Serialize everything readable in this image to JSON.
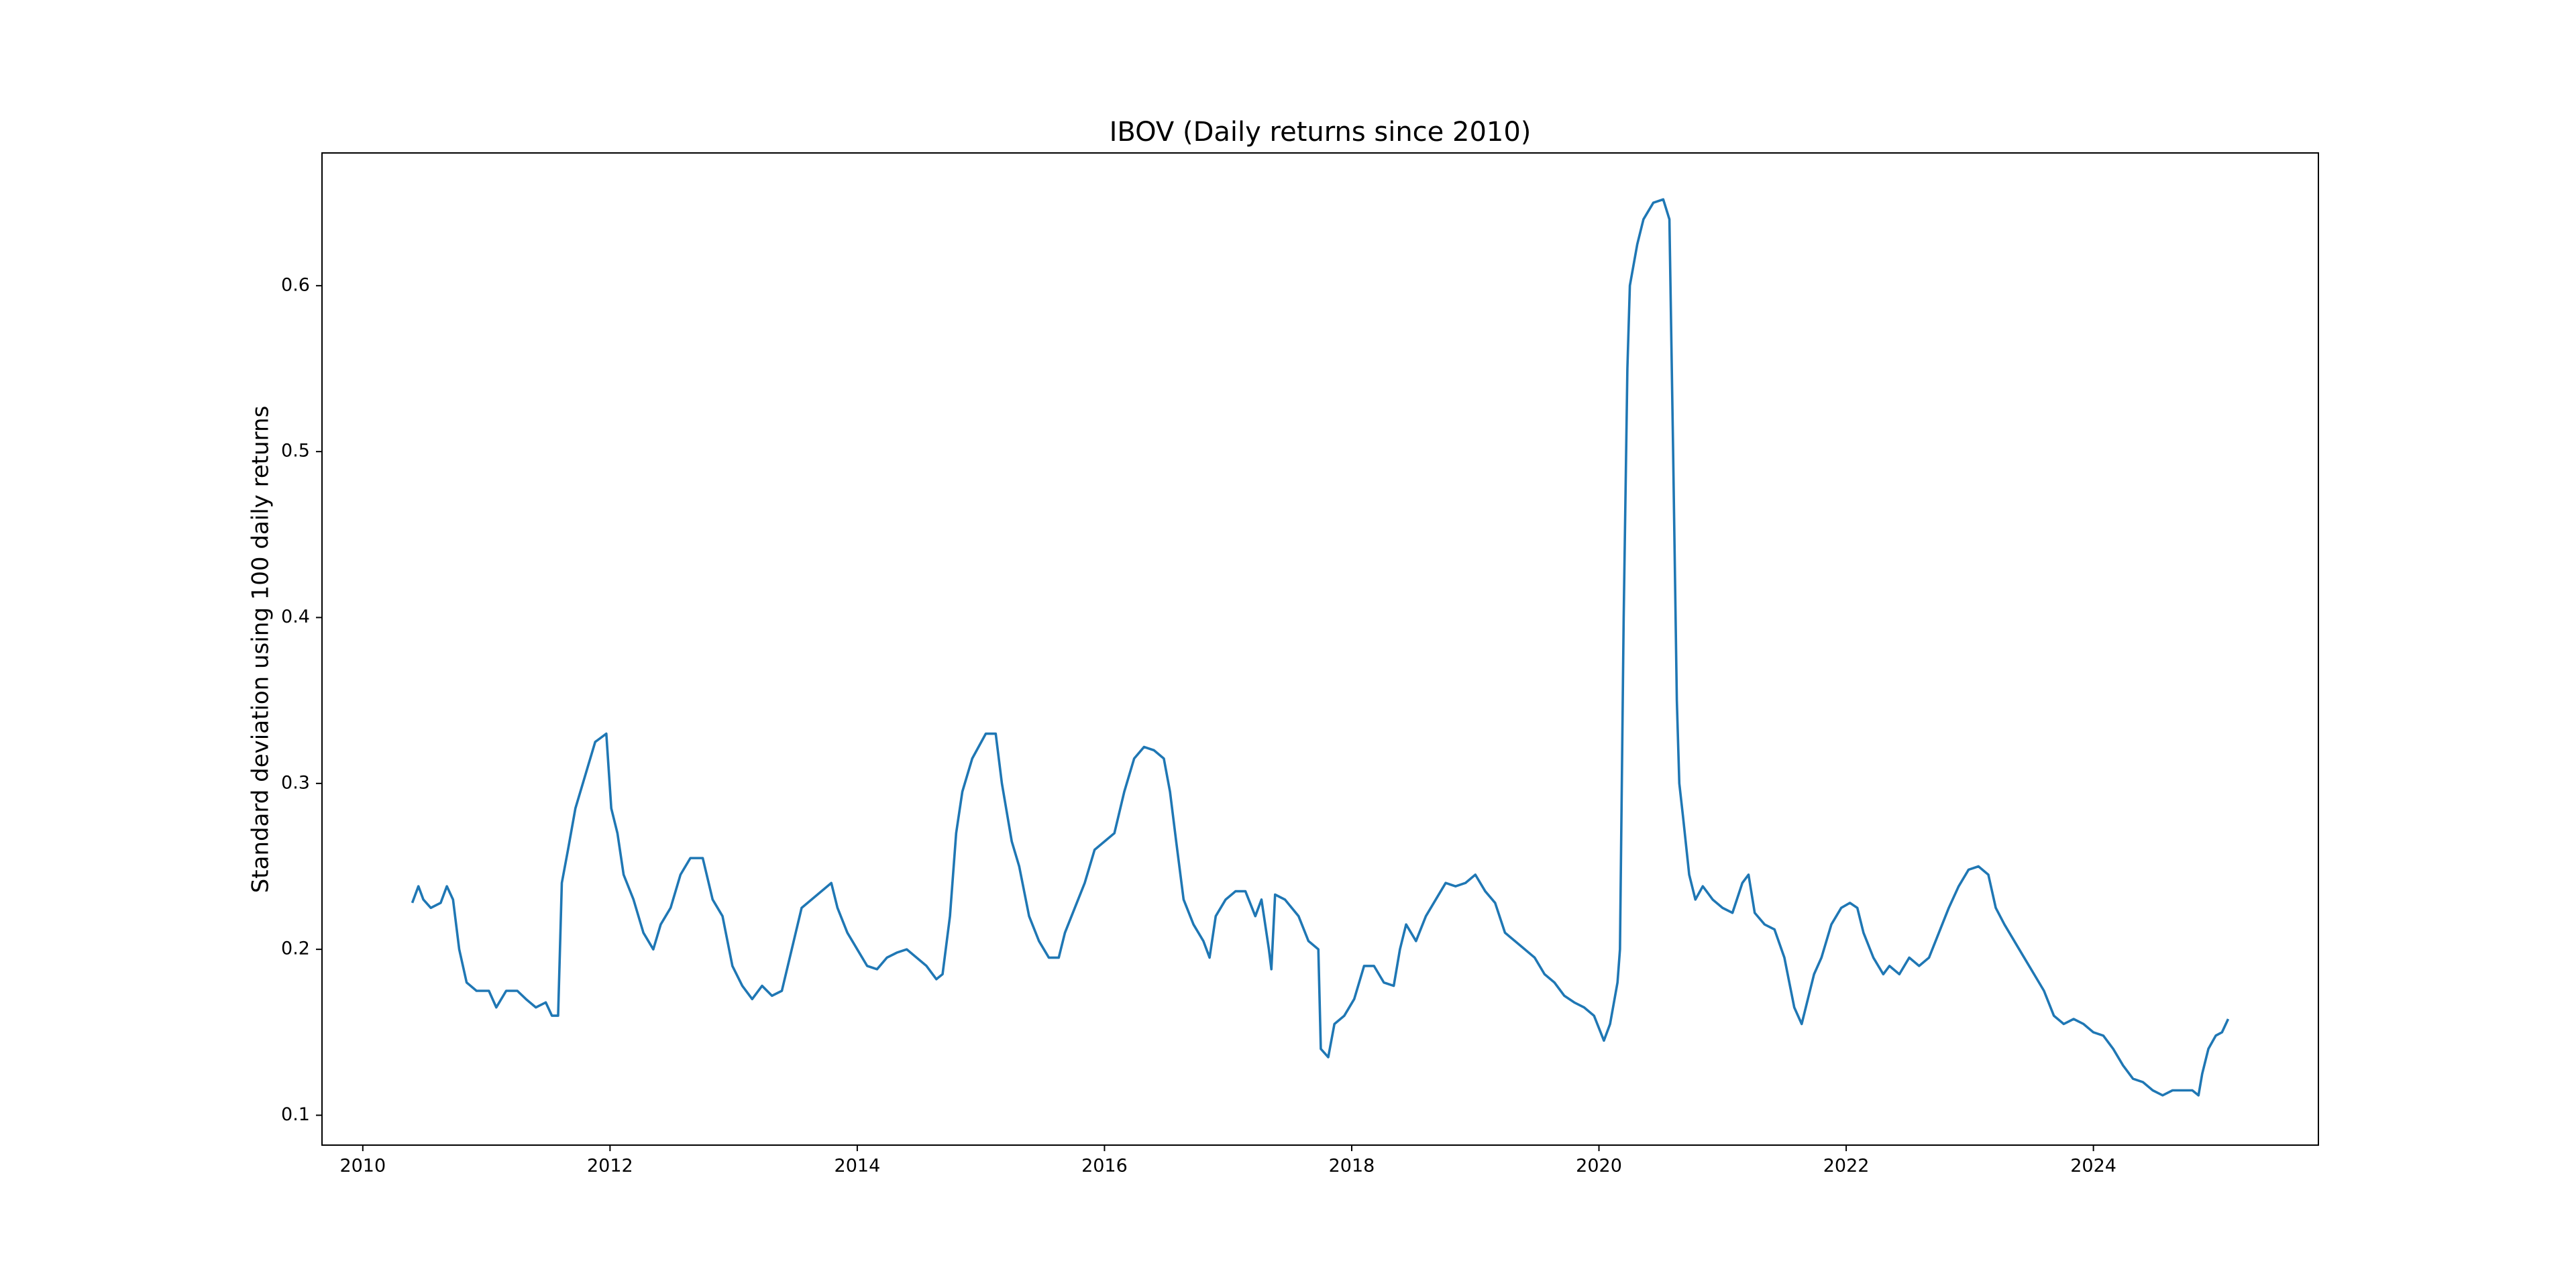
{
  "chart_data": {
    "type": "line",
    "title": "IBOV (Daily returns since 2010)",
    "y_label": "Standard deviation using 100 daily returns",
    "xlim": [
      2009.67,
      2025.82
    ],
    "ylim": [
      0.082,
      0.68
    ],
    "xticks": [
      2010,
      2012,
      2014,
      2016,
      2018,
      2020,
      2022,
      2024
    ],
    "yticks": [
      0.1,
      0.2,
      0.3,
      0.4,
      0.5,
      0.6
    ],
    "grid": false,
    "x": [
      2010.4,
      2010.45,
      2010.49,
      2010.55,
      2010.63,
      2010.68,
      2010.73,
      2010.78,
      2010.84,
      2010.92,
      2011.02,
      2011.08,
      2011.16,
      2011.25,
      2011.32,
      2011.4,
      2011.48,
      2011.53,
      2011.58,
      2011.61,
      2011.66,
      2011.72,
      2011.8,
      2011.88,
      2011.97,
      2012.01,
      2012.06,
      2012.11,
      2012.19,
      2012.27,
      2012.35,
      2012.41,
      2012.49,
      2012.57,
      2012.65,
      2012.75,
      2012.83,
      2012.91,
      2012.99,
      2013.07,
      2013.15,
      2013.23,
      2013.31,
      2013.39,
      2013.47,
      2013.55,
      2013.63,
      2013.71,
      2013.79,
      2013.84,
      2013.92,
      2014.0,
      2014.08,
      2014.16,
      2014.24,
      2014.32,
      2014.4,
      2014.48,
      2014.56,
      2014.64,
      2014.69,
      2014.75,
      2014.8,
      2014.85,
      2014.93,
      2015.04,
      2015.12,
      2015.17,
      2015.25,
      2015.31,
      2015.39,
      2015.47,
      2015.55,
      2015.63,
      2015.68,
      2015.76,
      2015.84,
      2015.92,
      2016.0,
      2016.08,
      2016.16,
      2016.24,
      2016.32,
      2016.4,
      2016.48,
      2016.53,
      2016.58,
      2016.64,
      2016.72,
      2016.8,
      2016.85,
      2016.9,
      2016.98,
      2017.06,
      2017.14,
      2017.22,
      2017.27,
      2017.33,
      2017.35,
      2017.38,
      2017.46,
      2017.57,
      2017.65,
      2017.73,
      2017.75,
      2017.81,
      2017.86,
      2017.94,
      2018.02,
      2018.1,
      2018.18,
      2018.26,
      2018.34,
      2018.39,
      2018.44,
      2018.52,
      2018.6,
      2018.68,
      2018.76,
      2018.84,
      2018.92,
      2019.0,
      2019.08,
      2019.16,
      2019.24,
      2019.32,
      2019.4,
      2019.48,
      2019.56,
      2019.64,
      2019.72,
      2019.8,
      2019.88,
      2019.96,
      2020.04,
      2020.09,
      2020.15,
      2020.17,
      2020.2,
      2020.23,
      2020.25,
      2020.31,
      2020.36,
      2020.44,
      2020.52,
      2020.57,
      2020.6,
      2020.63,
      2020.65,
      2020.68,
      2020.73,
      2020.78,
      2020.84,
      2020.92,
      2021.0,
      2021.08,
      2021.16,
      2021.21,
      2021.26,
      2021.34,
      2021.42,
      2021.5,
      2021.58,
      2021.64,
      2021.69,
      2021.74,
      2021.8,
      2021.88,
      2021.96,
      2022.03,
      2022.09,
      2022.14,
      2022.22,
      2022.3,
      2022.35,
      2022.43,
      2022.51,
      2022.59,
      2022.67,
      2022.75,
      2022.83,
      2022.91,
      2022.99,
      2023.07,
      2023.15,
      2023.21,
      2023.28,
      2023.36,
      2023.44,
      2023.52,
      2023.6,
      2023.68,
      2023.76,
      2023.84,
      2023.92,
      2024.0,
      2024.08,
      2024.16,
      2024.24,
      2024.32,
      2024.4,
      2024.48,
      2024.56,
      2024.64,
      2024.72,
      2024.8,
      2024.85,
      2024.88,
      2024.93,
      2024.99,
      2025.04,
      2025.09
    ],
    "series": [
      {
        "name": "IBOV",
        "color": "#1f77b4",
        "values": [
          0.228,
          0.238,
          0.23,
          0.225,
          0.228,
          0.238,
          0.23,
          0.2,
          0.18,
          0.175,
          0.175,
          0.165,
          0.175,
          0.175,
          0.17,
          0.165,
          0.168,
          0.16,
          0.16,
          0.24,
          0.26,
          0.285,
          0.305,
          0.325,
          0.33,
          0.285,
          0.27,
          0.245,
          0.23,
          0.21,
          0.2,
          0.215,
          0.225,
          0.245,
          0.255,
          0.255,
          0.23,
          0.22,
          0.19,
          0.178,
          0.17,
          0.178,
          0.172,
          0.175,
          0.2,
          0.225,
          0.23,
          0.235,
          0.24,
          0.225,
          0.21,
          0.2,
          0.19,
          0.188,
          0.195,
          0.198,
          0.2,
          0.195,
          0.19,
          0.182,
          0.185,
          0.22,
          0.27,
          0.295,
          0.315,
          0.33,
          0.33,
          0.3,
          0.265,
          0.25,
          0.22,
          0.205,
          0.195,
          0.195,
          0.21,
          0.225,
          0.24,
          0.26,
          0.265,
          0.27,
          0.295,
          0.315,
          0.322,
          0.32,
          0.315,
          0.295,
          0.265,
          0.23,
          0.215,
          0.205,
          0.195,
          0.22,
          0.23,
          0.235,
          0.235,
          0.22,
          0.23,
          0.2,
          0.188,
          0.233,
          0.23,
          0.22,
          0.205,
          0.2,
          0.14,
          0.135,
          0.155,
          0.16,
          0.17,
          0.19,
          0.19,
          0.18,
          0.178,
          0.2,
          0.215,
          0.205,
          0.22,
          0.23,
          0.24,
          0.238,
          0.24,
          0.245,
          0.235,
          0.228,
          0.21,
          0.205,
          0.2,
          0.195,
          0.185,
          0.18,
          0.172,
          0.168,
          0.165,
          0.16,
          0.145,
          0.155,
          0.18,
          0.2,
          0.4,
          0.55,
          0.6,
          0.625,
          0.64,
          0.65,
          0.652,
          0.64,
          0.5,
          0.35,
          0.3,
          0.28,
          0.245,
          0.23,
          0.238,
          0.23,
          0.225,
          0.222,
          0.24,
          0.245,
          0.222,
          0.215,
          0.212,
          0.195,
          0.165,
          0.155,
          0.17,
          0.185,
          0.195,
          0.215,
          0.225,
          0.228,
          0.225,
          0.21,
          0.195,
          0.185,
          0.19,
          0.185,
          0.195,
          0.19,
          0.195,
          0.21,
          0.225,
          0.238,
          0.248,
          0.25,
          0.245,
          0.225,
          0.215,
          0.205,
          0.195,
          0.185,
          0.175,
          0.16,
          0.155,
          0.158,
          0.155,
          0.15,
          0.148,
          0.14,
          0.13,
          0.122,
          0.12,
          0.115,
          0.112,
          0.115,
          0.115,
          0.115,
          0.112,
          0.125,
          0.14,
          0.148,
          0.15,
          0.158
        ]
      }
    ]
  }
}
